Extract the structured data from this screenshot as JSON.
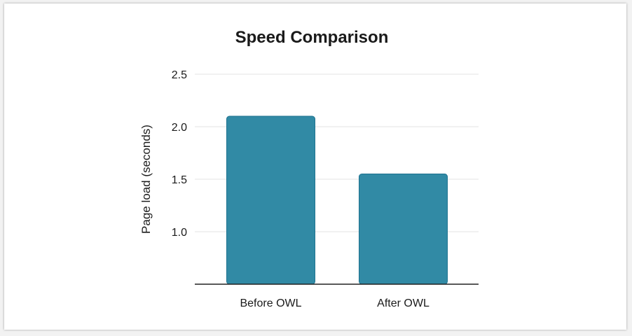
{
  "chart_data": {
    "type": "bar",
    "title": "Speed Comparison",
    "xlabel": "",
    "ylabel": "Page load (seconds)",
    "categories": [
      "Before OWL",
      "After OWL"
    ],
    "values": [
      2.1,
      1.55
    ],
    "ylim": [
      0.5,
      2.5
    ],
    "yticks": [
      "1.0",
      "1.5",
      "2.0",
      "2.5"
    ],
    "grid": true,
    "bar_color": "#318aa5",
    "bar_edge_color": "#1f7390"
  }
}
